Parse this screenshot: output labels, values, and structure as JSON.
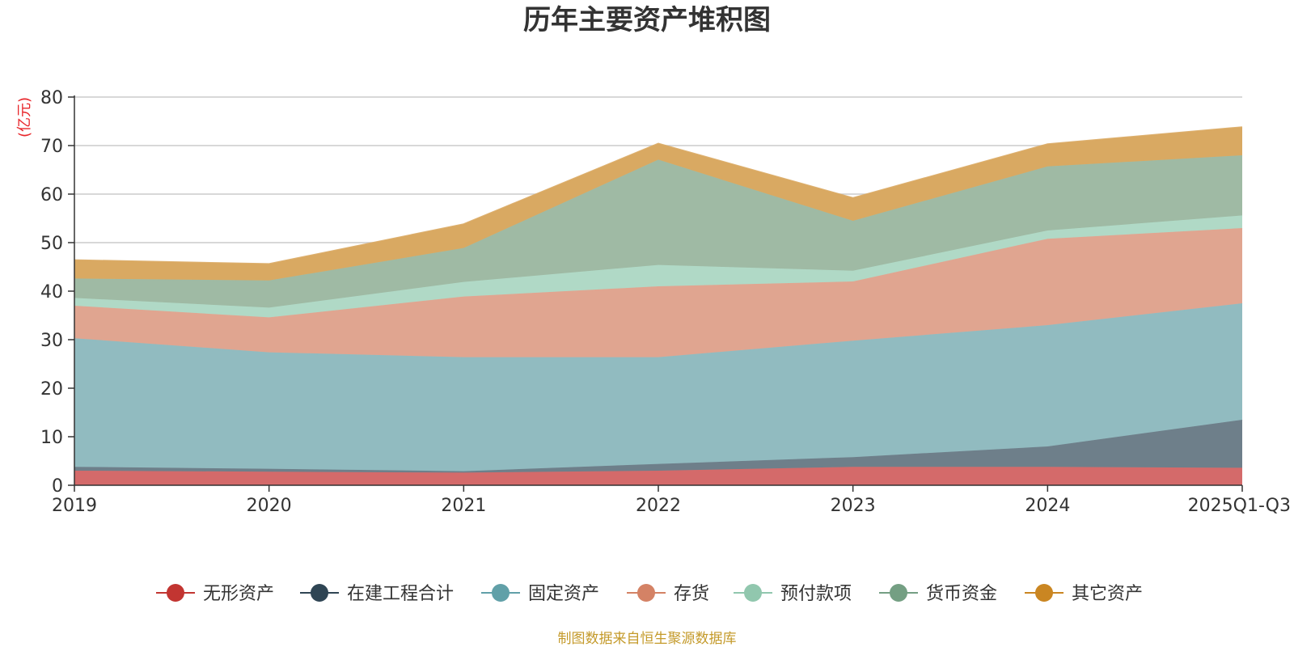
{
  "chart_data": {
    "type": "area",
    "stacked": true,
    "title": "历年主要资产堆积图",
    "ylabel": "(亿元)",
    "xlabel": "",
    "ylim": [
      0,
      80
    ],
    "yticks": [
      0,
      10,
      20,
      30,
      40,
      50,
      60,
      70,
      80
    ],
    "grid": true,
    "legend_position": "bottom",
    "categories": [
      "2019",
      "2020",
      "2021",
      "2022",
      "2023",
      "2024",
      "2025Q1-Q3"
    ],
    "series": [
      {
        "name": "无形资产",
        "values": [
          3.0,
          2.8,
          2.6,
          3.0,
          3.8,
          3.8,
          3.6
        ],
        "line_color": "#c23531",
        "fill_color": "#d46a6a"
      },
      {
        "name": "在建工程合计",
        "values": [
          0.8,
          0.6,
          0.3,
          1.4,
          2.0,
          4.2,
          9.9
        ],
        "line_color": "#2f4554",
        "fill_color": "#6e7f8a"
      },
      {
        "name": "固定资产",
        "values": [
          26.5,
          24.0,
          23.5,
          22.0,
          24.0,
          25.0,
          24.0
        ],
        "line_color": "#61a0a8",
        "fill_color": "#91bbc0"
      },
      {
        "name": "存货",
        "values": [
          6.7,
          7.2,
          12.5,
          14.6,
          12.2,
          17.8,
          15.5
        ],
        "line_color": "#d48265",
        "fill_color": "#e0a590"
      },
      {
        "name": "预付款项",
        "values": [
          1.6,
          2.0,
          3.0,
          4.4,
          2.2,
          1.7,
          2.6
        ],
        "line_color": "#91c7ae",
        "fill_color": "#b0d9c6"
      },
      {
        "name": "货币资金",
        "values": [
          4.0,
          5.6,
          7.0,
          21.7,
          10.3,
          13.2,
          12.4
        ],
        "line_color": "#749f83",
        "fill_color": "#9fbaa4"
      },
      {
        "name": "其它资产",
        "values": [
          3.8,
          3.4,
          4.9,
          3.3,
          4.7,
          4.6,
          5.8
        ],
        "line_color": "#ca8622",
        "fill_color": "#d9a962"
      }
    ],
    "source_note": "制图数据来自恒生聚源数据库"
  }
}
